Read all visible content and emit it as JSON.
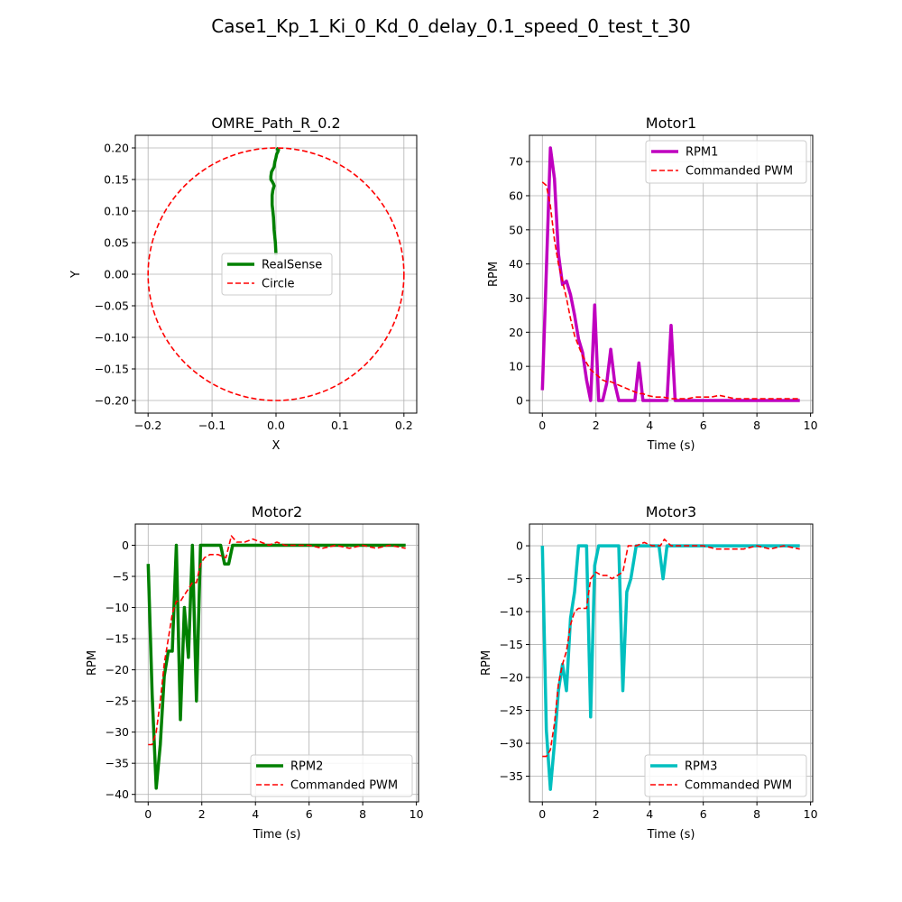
{
  "figure_title": "Case1_Kp_1_Ki_0_Kd_0_delay_0.1_speed_0_test_t_30",
  "chart_data": [
    {
      "id": "path",
      "type": "line",
      "title": "OMRE_Path_R_0.2",
      "xlabel": "X",
      "ylabel": "Y",
      "xlim": [
        -0.22,
        0.22
      ],
      "ylim": [
        -0.22,
        0.22
      ],
      "xticks": [
        -0.2,
        -0.1,
        0.0,
        0.1,
        0.2
      ],
      "xtick_labels": [
        "−0.2",
        "−0.1",
        "0.0",
        "0.1",
        "0.2"
      ],
      "yticks": [
        0.2,
        0.15,
        0.1,
        0.05,
        0.0,
        -0.05,
        -0.1,
        -0.15,
        -0.2
      ],
      "ytick_labels": [
        "0.20",
        "0.15",
        "0.10",
        "0.05",
        "0.00",
        "−0.05",
        "−0.10",
        "−0.15",
        "−0.20"
      ],
      "grid": true,
      "legend_position": "center",
      "series": [
        {
          "name": "RealSense",
          "color": "#008000",
          "style": "solid",
          "x": [
            0.0,
            -0.001,
            -0.003,
            -0.004,
            -0.005,
            -0.006,
            -0.006,
            -0.005,
            -0.003,
            -0.004,
            -0.006,
            -0.008,
            -0.008,
            -0.007,
            -0.003,
            -0.002,
            0.0,
            0.001,
            0.003,
            0.004,
            0.002,
            0.003,
            0.004
          ],
          "y": [
            0.03,
            0.05,
            0.07,
            0.09,
            0.1,
            0.11,
            0.125,
            0.133,
            0.14,
            0.143,
            0.147,
            0.15,
            0.155,
            0.162,
            0.17,
            0.177,
            0.185,
            0.19,
            0.194,
            0.197,
            0.198,
            0.199,
            0.2
          ]
        },
        {
          "name": "Circle",
          "color": "#ff0000",
          "style": "dashed",
          "shape": "circle",
          "radius": 0.2,
          "center": [
            0,
            0
          ]
        }
      ]
    },
    {
      "id": "motor1",
      "type": "line",
      "title": "Motor1",
      "xlabel": "Time (s)",
      "ylabel": "RPM",
      "xlim": [
        -0.48,
        10.08
      ],
      "ylim": [
        -3.7,
        77.7
      ],
      "xticks": [
        0,
        2,
        4,
        6,
        8,
        10
      ],
      "xtick_labels": [
        "0",
        "2",
        "4",
        "6",
        "8",
        "10"
      ],
      "yticks": [
        0,
        10,
        20,
        30,
        40,
        50,
        60,
        70
      ],
      "ytick_labels": [
        "0",
        "10",
        "20",
        "30",
        "40",
        "50",
        "60",
        "70"
      ],
      "grid": true,
      "legend_position": "top-right",
      "series": [
        {
          "name": "RPM1",
          "color": "#bf00bf",
          "style": "solid",
          "x": [
            0.0,
            0.15,
            0.3,
            0.45,
            0.6,
            0.75,
            0.9,
            1.05,
            1.2,
            1.35,
            1.5,
            1.65,
            1.8,
            1.95,
            2.1,
            2.25,
            2.4,
            2.55,
            2.7,
            2.85,
            3.0,
            3.15,
            3.3,
            3.45,
            3.6,
            3.75,
            3.9,
            4.05,
            4.2,
            4.35,
            4.5,
            4.65,
            4.8,
            4.95,
            5.1,
            5.25,
            5.4,
            6.0,
            7.0,
            8.0,
            9.0,
            9.6
          ],
          "y": [
            3,
            38,
            74,
            65,
            43,
            34,
            35,
            31,
            25,
            18,
            14,
            6,
            0,
            28,
            0,
            0,
            5,
            15,
            5,
            0,
            0,
            0,
            0,
            0,
            11,
            0,
            0,
            0,
            0,
            0,
            0,
            0,
            22,
            0,
            0,
            0,
            0,
            0,
            0,
            0,
            0,
            0
          ]
        },
        {
          "name": "Commanded PWM",
          "color": "#ff0000",
          "style": "dashed",
          "x": [
            0.0,
            0.15,
            0.3,
            0.45,
            0.6,
            0.75,
            0.9,
            1.05,
            1.2,
            1.35,
            1.5,
            1.65,
            1.8,
            1.95,
            2.1,
            2.25,
            2.4,
            2.55,
            2.7,
            2.85,
            3.0,
            3.15,
            3.3,
            3.45,
            3.6,
            3.75,
            3.9,
            4.2,
            4.5,
            4.8,
            5.1,
            5.4,
            5.7,
            6.0,
            6.3,
            6.6,
            6.9,
            7.2,
            7.6,
            8.0,
            8.5,
            9.0,
            9.6
          ],
          "y": [
            64,
            63,
            57,
            47,
            40,
            35,
            30,
            24,
            19,
            16,
            13,
            11,
            9,
            8,
            7,
            6,
            5.5,
            5.5,
            5,
            4.5,
            4,
            3.5,
            3,
            2.5,
            2,
            2,
            1.5,
            1,
            1,
            0.5,
            0.5,
            0.5,
            1,
            1,
            1,
            1.5,
            1,
            0.5,
            0.5,
            0.5,
            0.5,
            0.5,
            0.5
          ]
        }
      ]
    },
    {
      "id": "motor2",
      "type": "line",
      "title": "Motor2",
      "xlabel": "Time (s)",
      "ylabel": "RPM",
      "xlim": [
        -0.48,
        10.08
      ],
      "ylim": [
        -41.2,
        3.4
      ],
      "xticks": [
        0,
        2,
        4,
        6,
        8,
        10
      ],
      "xtick_labels": [
        "0",
        "2",
        "4",
        "6",
        "8",
        "10"
      ],
      "yticks": [
        0,
        -5,
        -10,
        -15,
        -20,
        -25,
        -30,
        -35,
        -40
      ],
      "ytick_labels": [
        "0",
        "−5",
        "−10",
        "−15",
        "−20",
        "−25",
        "−30",
        "−35",
        "−40"
      ],
      "grid": true,
      "legend_position": "bottom-right",
      "series": [
        {
          "name": "RPM2",
          "color": "#008000",
          "style": "solid",
          "x": [
            0.0,
            0.15,
            0.3,
            0.45,
            0.6,
            0.75,
            0.9,
            1.05,
            1.2,
            1.35,
            1.5,
            1.65,
            1.8,
            1.95,
            2.1,
            2.25,
            2.4,
            2.55,
            2.7,
            2.85,
            3.0,
            3.15,
            3.3,
            3.5,
            4.0,
            5.0,
            6.0,
            7.0,
            8.0,
            9.0,
            9.6
          ],
          "y": [
            -3,
            -24,
            -39,
            -32,
            -21,
            -17,
            -17,
            0,
            -28,
            -10,
            -18,
            0,
            -25,
            0,
            0,
            0,
            0,
            0,
            0,
            -3,
            -3,
            0,
            0,
            0,
            0,
            0,
            0,
            0,
            0,
            0,
            0
          ]
        },
        {
          "name": "Commanded PWM",
          "color": "#ff0000",
          "style": "dashed",
          "x": [
            0.0,
            0.15,
            0.3,
            0.45,
            0.6,
            0.75,
            0.9,
            1.05,
            1.2,
            1.35,
            1.5,
            1.65,
            1.8,
            1.95,
            2.1,
            2.3,
            2.6,
            2.9,
            3.1,
            3.3,
            3.6,
            3.9,
            4.2,
            4.5,
            4.8,
            5.1,
            5.5,
            6.0,
            6.5,
            7.0,
            7.5,
            8.0,
            8.5,
            9.0,
            9.6
          ],
          "y": [
            -32,
            -32,
            -30,
            -25,
            -19,
            -15,
            -11,
            -9,
            -9,
            -8,
            -7,
            -6,
            -6,
            -3,
            -2,
            -1.5,
            -1.5,
            -2,
            1.5,
            0.5,
            0.5,
            1,
            0.5,
            0,
            0.5,
            0,
            0,
            0,
            -0.5,
            0,
            -0.5,
            0,
            -0.5,
            0,
            -0.5
          ]
        }
      ]
    },
    {
      "id": "motor3",
      "type": "line",
      "title": "Motor3",
      "xlabel": "Time (s)",
      "ylabel": "RPM",
      "xlim": [
        -0.48,
        10.08
      ],
      "ylim": [
        -38.9,
        3.3
      ],
      "xticks": [
        0,
        2,
        4,
        6,
        8,
        10
      ],
      "xtick_labels": [
        "0",
        "2",
        "4",
        "6",
        "8",
        "10"
      ],
      "yticks": [
        0,
        -5,
        -10,
        -15,
        -20,
        -25,
        -30,
        -35
      ],
      "ytick_labels": [
        "0",
        "−5",
        "−10",
        "−15",
        "−20",
        "−25",
        "−30",
        "−35"
      ],
      "grid": true,
      "legend_position": "bottom-right",
      "series": [
        {
          "name": "RPM3",
          "color": "#00bfbf",
          "style": "solid",
          "x": [
            0.0,
            0.15,
            0.3,
            0.45,
            0.6,
            0.75,
            0.9,
            1.05,
            1.2,
            1.35,
            1.5,
            1.65,
            1.8,
            1.95,
            2.1,
            2.25,
            2.4,
            2.55,
            2.7,
            2.85,
            3.0,
            3.15,
            3.3,
            3.5,
            4.0,
            4.35,
            4.5,
            4.65,
            5.0,
            6.0,
            7.0,
            8.0,
            9.0,
            9.6
          ],
          "y": [
            0,
            -28,
            -37,
            -30,
            -22,
            -18,
            -22,
            -11,
            -7,
            0,
            0,
            0,
            -26,
            -3,
            0,
            0,
            0,
            0,
            0,
            0,
            -22,
            -7,
            -5,
            0,
            0,
            0,
            -5,
            0,
            0,
            0,
            0,
            0,
            0,
            0
          ]
        },
        {
          "name": "Commanded PWM",
          "color": "#ff0000",
          "style": "dashed",
          "x": [
            0.0,
            0.15,
            0.3,
            0.45,
            0.6,
            0.75,
            0.9,
            1.05,
            1.2,
            1.35,
            1.5,
            1.65,
            1.8,
            2.0,
            2.2,
            2.4,
            2.6,
            2.8,
            3.0,
            3.2,
            3.5,
            3.8,
            4.1,
            4.4,
            4.55,
            4.8,
            5.2,
            5.6,
            6.0,
            6.5,
            7.0,
            7.5,
            8.0,
            8.5,
            9.0,
            9.6
          ],
          "y": [
            -32,
            -32,
            -31,
            -27,
            -21,
            -18,
            -16,
            -12,
            -10,
            -9.5,
            -9.5,
            -9.5,
            -5,
            -4,
            -4.5,
            -4.5,
            -5,
            -4.5,
            -4,
            0,
            0,
            0.5,
            0,
            0,
            1,
            0,
            0,
            0,
            0,
            -0.5,
            -0.5,
            -0.5,
            0,
            -0.5,
            0,
            -0.5
          ]
        }
      ]
    }
  ]
}
